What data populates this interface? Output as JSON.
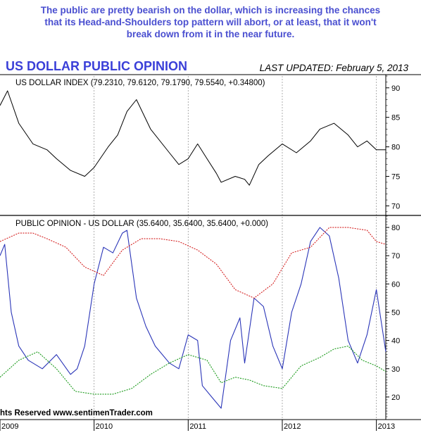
{
  "annotation": {
    "line1": "The public are pretty bearish on the dollar, which is increasing the chances",
    "line2": "that its Head-and-Shoulders top pattern will abort, or at least, that it won't",
    "line3": "break down from it in the near future."
  },
  "header": {
    "title": "US DOLLAR PUBLIC OPINION",
    "last_updated": "LAST UPDATED:  February 5, 2013"
  },
  "watermark": "hts Reserved  www.sentimenTrader.com",
  "chart_data": [
    {
      "type": "line",
      "title": "US DOLLAR INDEX (79.2310, 79.6120, 79.1790, 79.5540, +0.34800)",
      "ylim": [
        68.5,
        92
      ],
      "y_ticks": [
        "90",
        "85",
        "80",
        "75",
        "70"
      ],
      "x_ticks": [
        "2009",
        "2010",
        "2011",
        "2012",
        "2013"
      ],
      "series": [
        {
          "x": [
            2009.0,
            2009.08,
            2009.2,
            2009.35,
            2009.5,
            2009.6,
            2009.75,
            2009.9,
            2010.0,
            2010.15,
            2010.25,
            2010.35,
            2010.45,
            2010.6,
            2010.8,
            2010.9,
            2011.0,
            2011.1,
            2011.2,
            2011.3,
            2011.35,
            2011.5,
            2011.6,
            2011.65,
            2011.75,
            2011.85,
            2012.0,
            2012.15,
            2012.3,
            2012.4,
            2012.55,
            2012.7,
            2012.8,
            2012.9,
            2013.0,
            2013.1
          ],
          "values": [
            87,
            89.5,
            84,
            80.5,
            79.5,
            78,
            76,
            75,
            76.5,
            80,
            82,
            86,
            88,
            83,
            79,
            77,
            78,
            80.5,
            78,
            75.5,
            74,
            75,
            74.5,
            73.5,
            77,
            78.5,
            80.5,
            79,
            81,
            83,
            84,
            82,
            80,
            81,
            79.5,
            79.5
          ]
        }
      ]
    },
    {
      "type": "line",
      "title": "PUBLIC OPINION - US DOLLAR (35.6400, 35.6400, 35.6400, +0.000)",
      "ylim": [
        12,
        84
      ],
      "y_ticks": [
        "80",
        "70",
        "60",
        "50",
        "40",
        "30",
        "20"
      ],
      "x_ticks": [
        "2009",
        "2010",
        "2011",
        "2012",
        "2013"
      ],
      "series": [
        {
          "color": "#2a35b8",
          "x": [
            2009.0,
            2009.05,
            2009.12,
            2009.2,
            2009.3,
            2009.45,
            2009.6,
            2009.75,
            2009.82,
            2009.9,
            2010.0,
            2010.1,
            2010.2,
            2010.3,
            2010.35,
            2010.45,
            2010.55,
            2010.65,
            2010.8,
            2010.9,
            2011.0,
            2011.1,
            2011.15,
            2011.25,
            2011.35,
            2011.45,
            2011.55,
            2011.6,
            2011.7,
            2011.8,
            2011.9,
            2012.0,
            2012.1,
            2012.2,
            2012.3,
            2012.4,
            2012.5,
            2012.6,
            2012.7,
            2012.8,
            2012.9,
            2013.0,
            2013.1
          ],
          "values": [
            70,
            74,
            50,
            38,
            33,
            30,
            35,
            28,
            30,
            38,
            60,
            73,
            71,
            78,
            79,
            55,
            45,
            38,
            32,
            30,
            42,
            40,
            24,
            20,
            16,
            40,
            48,
            32,
            55,
            52,
            38,
            30,
            50,
            60,
            75,
            80,
            77,
            62,
            40,
            32,
            42,
            58,
            36
          ]
        },
        {
          "color": "#d42020",
          "x": [
            2009.0,
            2009.2,
            2009.35,
            2009.5,
            2009.7,
            2009.9,
            2010.1,
            2010.3,
            2010.5,
            2010.7,
            2010.9,
            2011.1,
            2011.3,
            2011.5,
            2011.7,
            2011.9,
            2012.1,
            2012.3,
            2012.5,
            2012.7,
            2012.9,
            2013.0,
            2013.1
          ],
          "values": [
            75,
            78,
            78,
            76,
            73,
            66,
            63,
            72,
            76,
            76,
            75,
            72,
            67,
            58,
            55,
            60,
            71,
            73,
            80,
            80,
            79,
            75,
            74
          ]
        },
        {
          "color": "#1a9a1a",
          "x": [
            2009.0,
            2009.2,
            2009.4,
            2009.6,
            2009.8,
            2010.0,
            2010.2,
            2010.4,
            2010.6,
            2010.8,
            2011.0,
            2011.2,
            2011.35,
            2011.5,
            2011.65,
            2011.8,
            2012.0,
            2012.2,
            2012.4,
            2012.55,
            2012.7,
            2012.85,
            2013.0,
            2013.1
          ],
          "values": [
            27,
            33,
            36,
            30,
            22,
            21,
            21,
            23,
            28,
            32,
            35,
            33,
            25,
            27,
            26,
            24,
            23,
            31,
            34,
            37,
            38,
            33,
            31,
            29
          ]
        }
      ]
    }
  ]
}
